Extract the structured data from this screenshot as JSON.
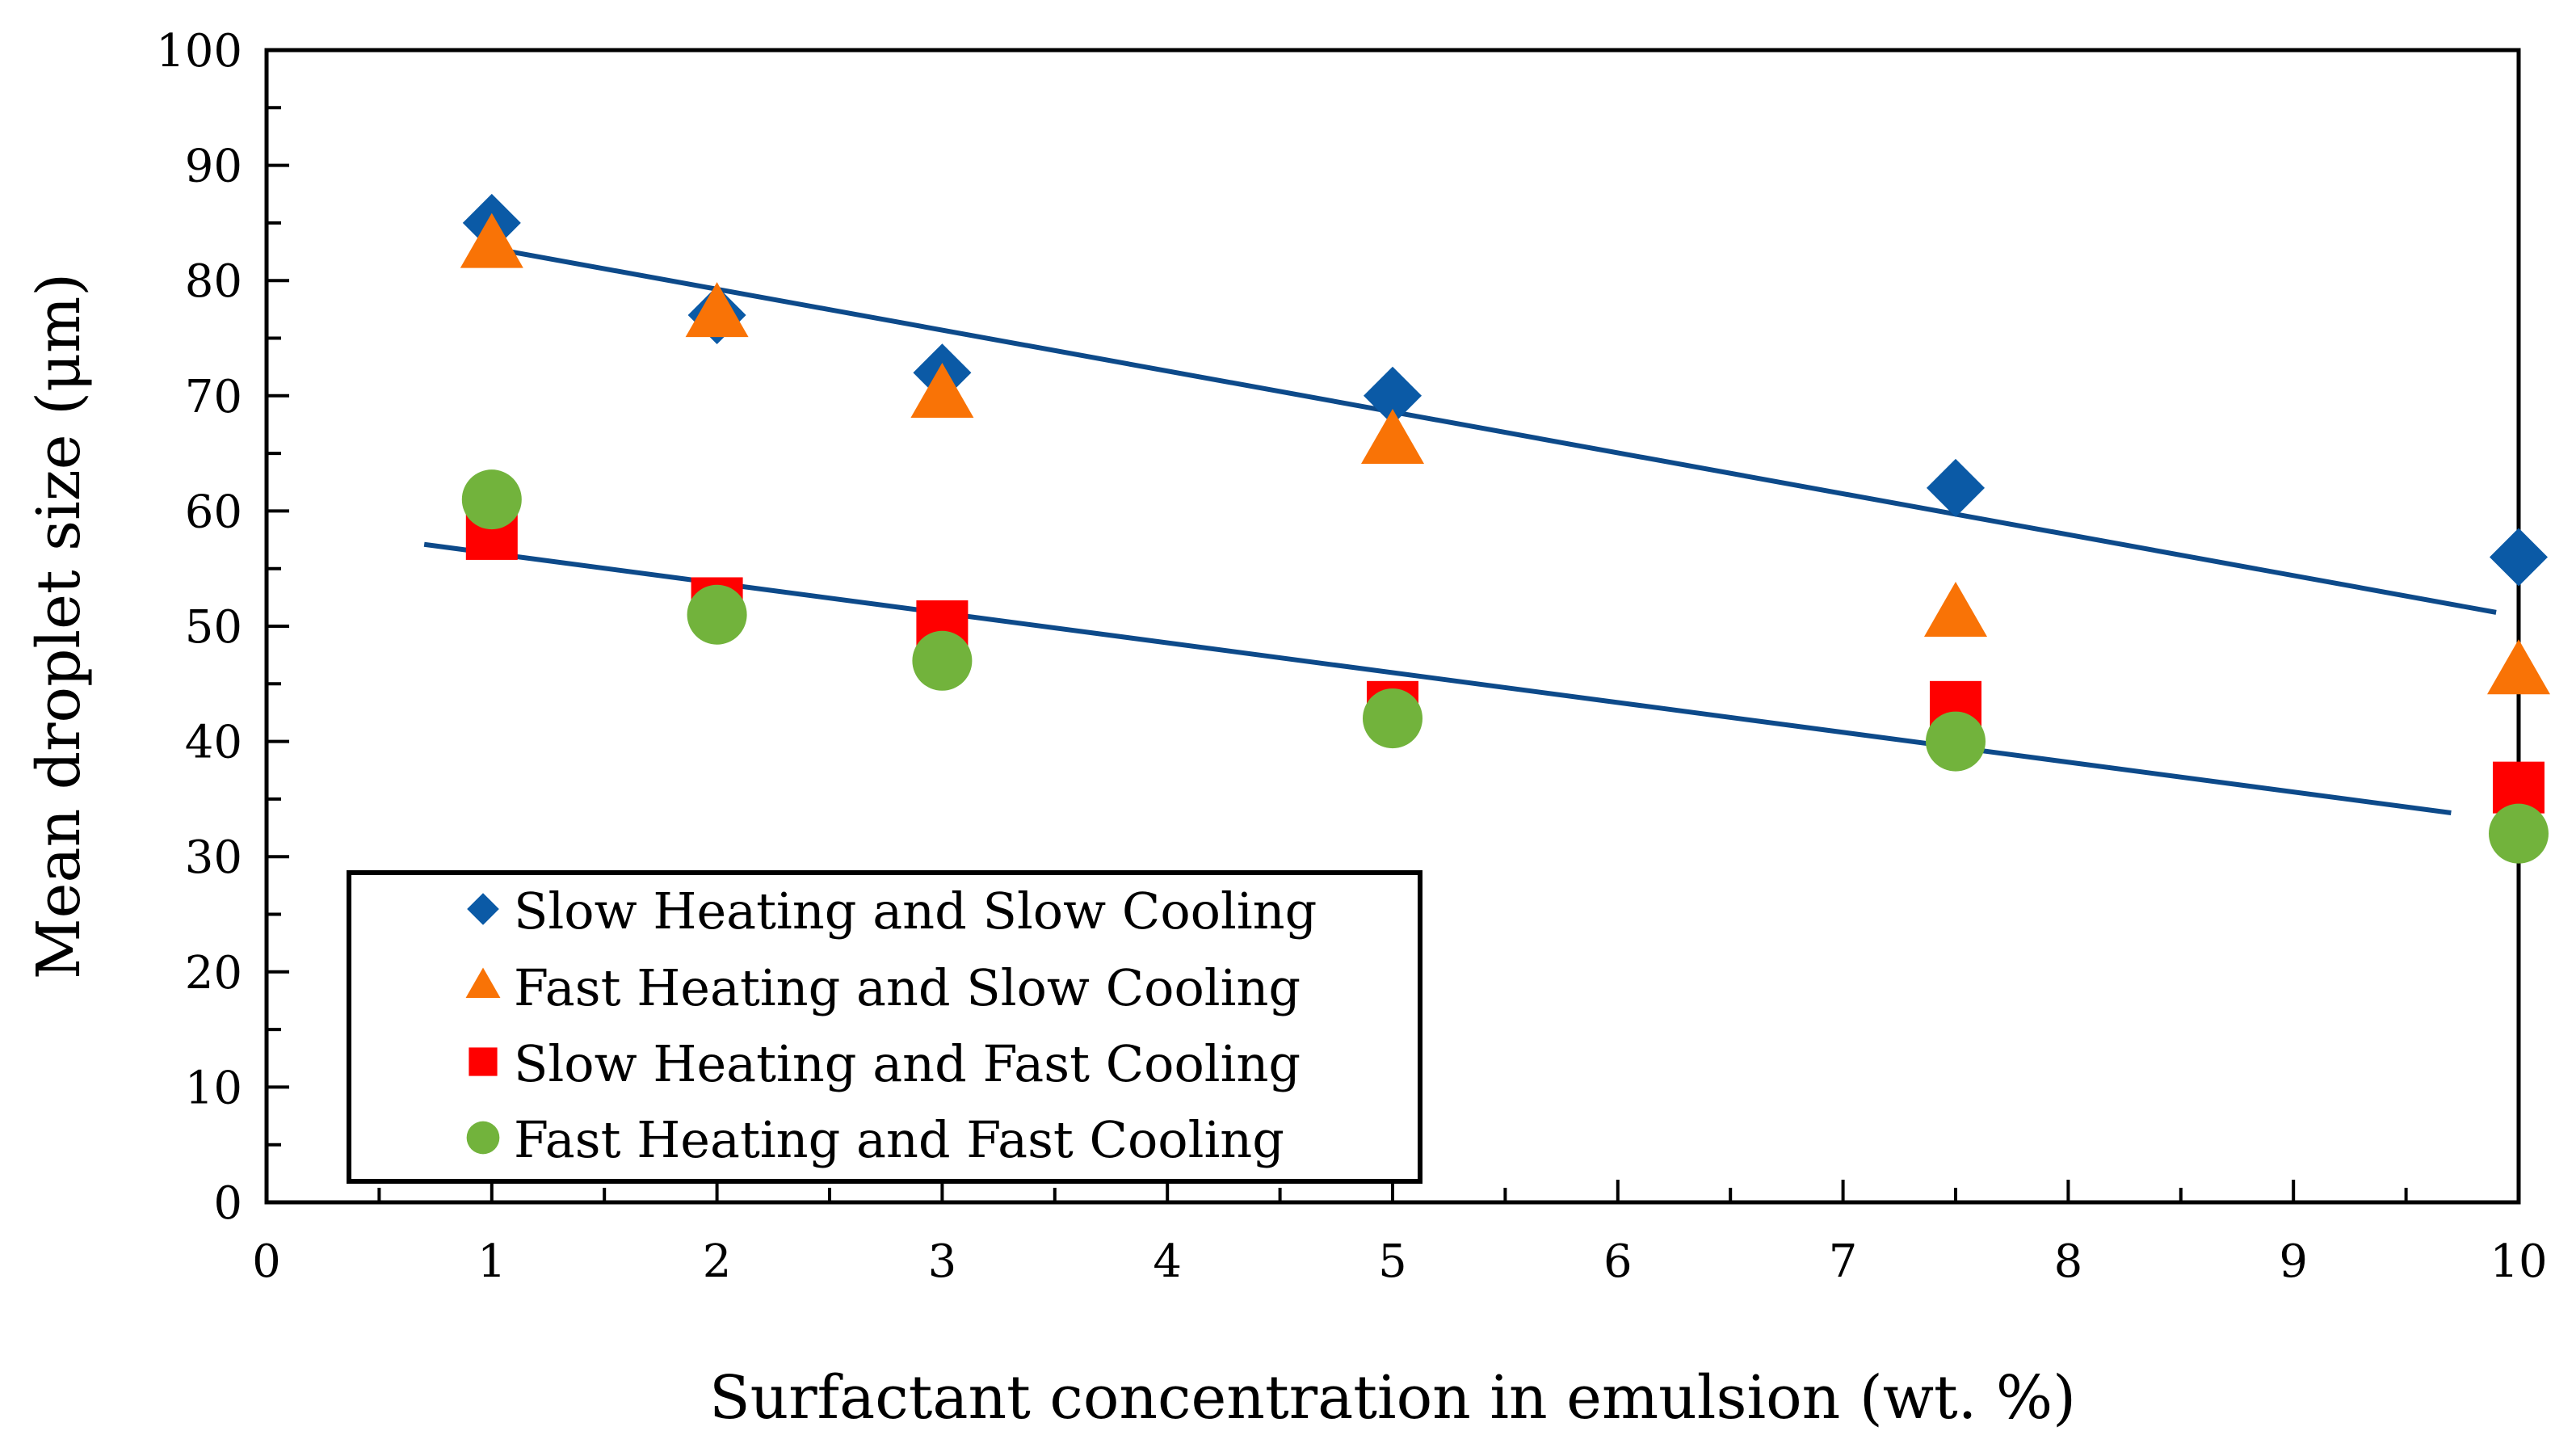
{
  "chart_data": {
    "type": "scatter",
    "title": "",
    "xlabel": "Surfactant concentration in emulsion (wt. %)",
    "ylabel": "Mean droplet size (μm)",
    "xlim": [
      0,
      10
    ],
    "ylim": [
      0,
      100
    ],
    "x_ticks": [
      "0",
      "1",
      "2",
      "3",
      "4",
      "5",
      "6",
      "7",
      "8",
      "9",
      "10"
    ],
    "y_ticks": [
      "0",
      "10",
      "20",
      "30",
      "40",
      "50",
      "60",
      "70",
      "80",
      "90",
      "100"
    ],
    "grid": false,
    "legend_position": "bottom-left",
    "series": [
      {
        "name": "Slow Heating and Slow Cooling",
        "marker": "diamond",
        "color": "#0b5aa6",
        "x": [
          1,
          2,
          3,
          5,
          7.5,
          10
        ],
        "y": [
          85,
          77,
          72,
          70,
          62,
          56
        ]
      },
      {
        "name": "Fast Heating and Slow Cooling",
        "marker": "triangle",
        "color": "#f97306",
        "x": [
          1,
          2,
          3,
          5,
          7.5,
          10
        ],
        "y": [
          83,
          77,
          70,
          66,
          51,
          46
        ]
      },
      {
        "name": "Slow Heating and Fast Cooling",
        "marker": "square",
        "color": "#ff0000",
        "x": [
          1,
          2,
          3,
          5,
          7.5,
          10
        ],
        "y": [
          58,
          52,
          50,
          43,
          43,
          36
        ]
      },
      {
        "name": "Fast Heating and Fast Cooling",
        "marker": "circle",
        "color": "#72b33c",
        "x": [
          1,
          2,
          3,
          5,
          7.5,
          10
        ],
        "y": [
          61,
          51,
          47,
          42,
          40,
          32
        ]
      }
    ],
    "trendlines": [
      {
        "name": "upper-trendline",
        "color": "#0d4a8a",
        "x": [
          1,
          9.9
        ],
        "y": [
          82.8,
          51.2
        ]
      },
      {
        "name": "lower-trendline",
        "color": "#0d4a8a",
        "x": [
          0.7,
          9.7
        ],
        "y": [
          57.1,
          33.8
        ]
      }
    ]
  }
}
